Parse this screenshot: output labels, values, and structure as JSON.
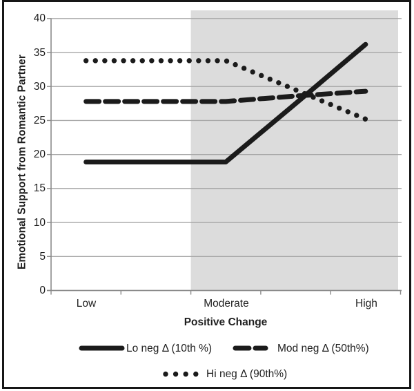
{
  "chart_data": {
    "type": "line",
    "title": "",
    "xlabel": "Positive Change",
    "ylabel": "Emotional Support from Romantic Partner",
    "x_categories": [
      "Low",
      "Moderate",
      "High"
    ],
    "x_points": 5,
    "x_labeled_point_indices": [
      0,
      2,
      4
    ],
    "series": [
      {
        "name": "Lo neg Δ (10th %)",
        "style": "solid",
        "values": [
          18.9,
          18.9,
          18.9,
          27.5,
          36.2
        ]
      },
      {
        "name": "Mod neg Δ (50th%)",
        "style": "dashed",
        "values": [
          27.8,
          27.8,
          27.8,
          28.6,
          29.3
        ]
      },
      {
        "name": "Hi neg Δ (90th%)",
        "style": "dotted",
        "values": [
          33.8,
          33.8,
          33.8,
          29.5,
          25.2
        ]
      }
    ],
    "yticks": [
      0,
      5,
      10,
      15,
      20,
      25,
      30,
      35,
      40
    ],
    "ylim": [
      0,
      40
    ],
    "grid": "horizontal",
    "legend_position": "bottom",
    "shaded_region": {
      "start_category_index": 2,
      "to": "right-edge",
      "color": "#dcdcdc"
    },
    "colors": {
      "line": "#1b1b1b",
      "gridline": "#a6a6a6",
      "axis": "#8a8a8a",
      "text": "#1f1f1f",
      "band": "#dcdcdc",
      "background": "#ffffff",
      "frame": "#161616"
    }
  }
}
